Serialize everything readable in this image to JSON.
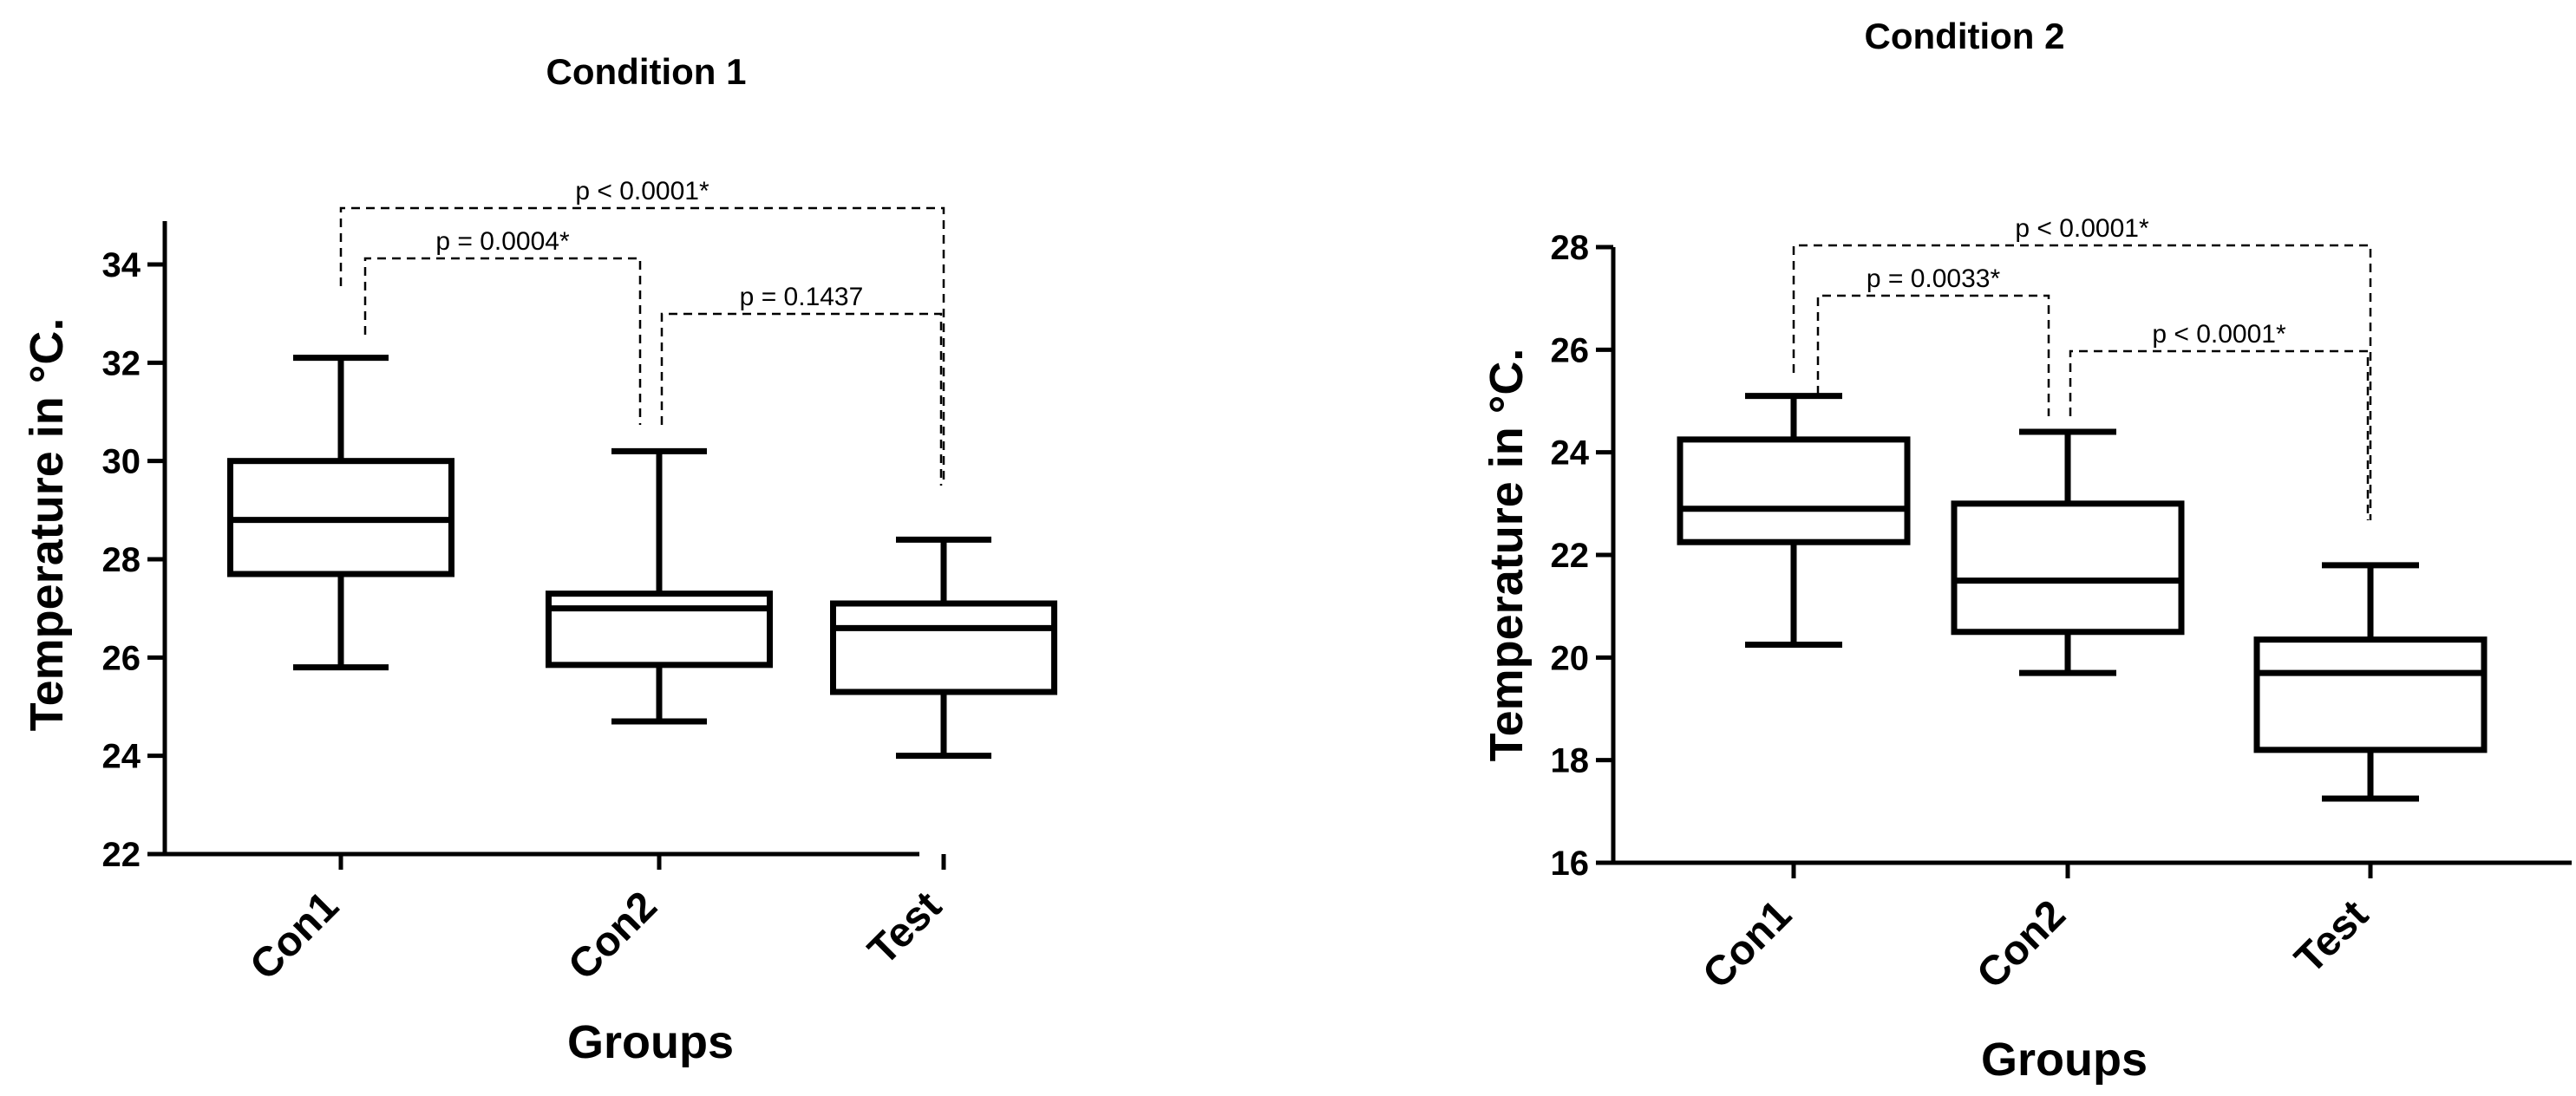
{
  "chart_data": [
    {
      "type": "box",
      "title": "Condition 1",
      "xlabel": "Groups",
      "ylabel": "Temperature in °C.",
      "ylim": [
        22,
        35
      ],
      "yticks": [
        "22",
        "24",
        "26",
        "28",
        "30",
        "32",
        "34"
      ],
      "categories": [
        "Con1",
        "Con2",
        "Test"
      ],
      "boxes": [
        {
          "category": "Con1",
          "min": 25.8,
          "q1": 27.7,
          "median": 28.8,
          "q3": 30.0,
          "max": 32.1
        },
        {
          "category": "Con2",
          "min": 24.7,
          "q1": 25.85,
          "median": 27.0,
          "q3": 27.3,
          "max": 30.2
        },
        {
          "category": "Test",
          "min": 24.0,
          "q1": 25.3,
          "median": 26.6,
          "q3": 27.1,
          "max": 28.4
        }
      ],
      "comparisons": [
        {
          "from": "Con1",
          "to": "Test",
          "label": "p < 0.0001*"
        },
        {
          "from": "Con1",
          "to": "Con2",
          "label": "p = 0.0004*"
        },
        {
          "from": "Con2",
          "to": "Test",
          "label": "p = 0.1437"
        }
      ]
    },
    {
      "type": "box",
      "title": "Condition 2",
      "xlabel": "Groups",
      "ylabel": "Temperature in °C.",
      "ylim": [
        16,
        28
      ],
      "yticks": [
        "16",
        "18",
        "20",
        "22",
        "24",
        "26",
        "28"
      ],
      "categories": [
        "Con1",
        "Con2",
        "Test"
      ],
      "boxes": [
        {
          "category": "Con1",
          "min": 20.25,
          "q1": 22.25,
          "median": 22.9,
          "q3": 24.25,
          "max": 25.1
        },
        {
          "category": "Con2",
          "min": 19.7,
          "q1": 20.5,
          "median": 21.5,
          "q3": 23.0,
          "max": 24.4
        },
        {
          "category": "Test",
          "min": 17.25,
          "q1": 18.2,
          "median": 19.7,
          "q3": 20.35,
          "max": 21.8
        }
      ],
      "comparisons": [
        {
          "from": "Con1",
          "to": "Test",
          "label": "p < 0.0001*"
        },
        {
          "from": "Con1",
          "to": "Con2",
          "label": "p = 0.0033*"
        },
        {
          "from": "Con2",
          "to": "Test",
          "label": "p < 0.0001*"
        }
      ]
    }
  ]
}
